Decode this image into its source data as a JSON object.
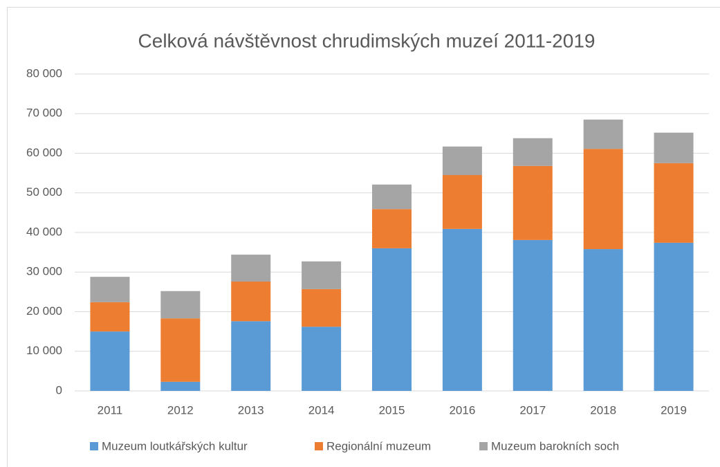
{
  "chart_data": {
    "type": "stacked_bar",
    "title": "Celková návštěvnost chrudimských muzeí 2011-2019",
    "categories": [
      "2011",
      "2012",
      "2013",
      "2014",
      "2015",
      "2016",
      "2017",
      "2018",
      "2019"
    ],
    "series": [
      {
        "name": "Muzeum loutkářských kultur",
        "color": "#5b9bd5",
        "values": [
          15000,
          2300,
          17600,
          16200,
          36000,
          40900,
          38100,
          35800,
          37400
        ]
      },
      {
        "name": "Regionální muzeum",
        "color": "#ed7d31",
        "values": [
          7400,
          16000,
          10000,
          9500,
          9900,
          13600,
          18700,
          25300,
          20100
        ]
      },
      {
        "name": "Muzeum barokních soch",
        "color": "#a5a5a5",
        "values": [
          6400,
          6900,
          6800,
          7000,
          6200,
          7200,
          7000,
          7400,
          7700
        ]
      }
    ],
    "ylim": [
      0,
      80000
    ],
    "yticks": [
      0,
      {
        "value": 10000,
        "label": "10 000"
      },
      {
        "value": 20000,
        "label": "20 000"
      },
      {
        "value": 30000,
        "label": "30 000"
      },
      {
        "value": 40000,
        "label": "40 000"
      },
      {
        "value": 50000,
        "label": "50 000"
      },
      {
        "value": 60000,
        "label": "60 000"
      },
      {
        "value": 70000,
        "label": "70 000"
      },
      {
        "value": 80000,
        "label": "80 000"
      }
    ],
    "grid": true,
    "legend": "bottom"
  }
}
